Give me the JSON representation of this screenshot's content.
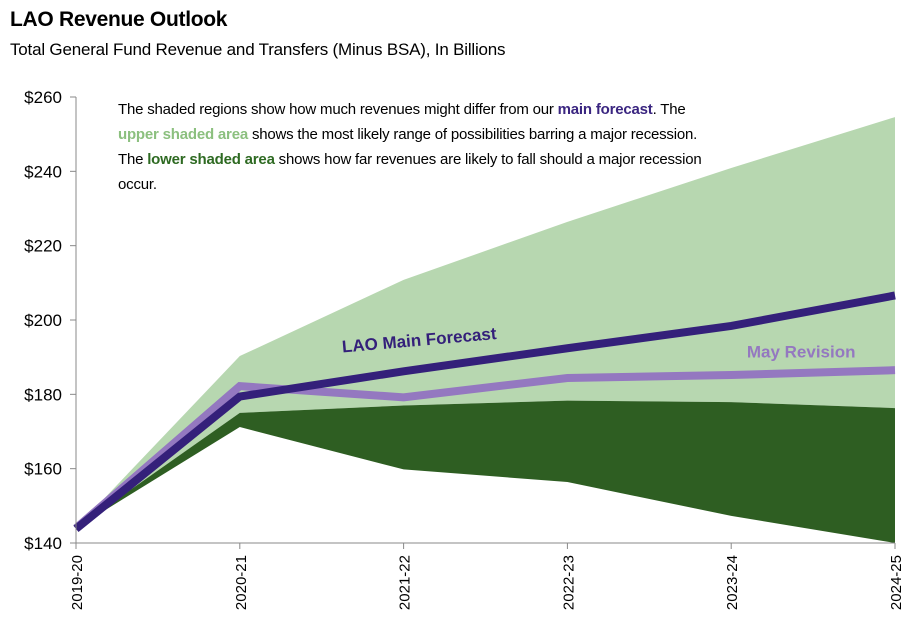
{
  "header": {
    "title": "LAO Revenue Outlook",
    "subtitle": "Total General Fund Revenue  and Transfers  (Minus BSA), In Billions"
  },
  "note": {
    "part1": "The shaded regions show how much revenues might differ from our ",
    "main_highlight": "main forecast",
    "part2": ". The ",
    "upper_highlight": "upper shaded area",
    "part3": " shows the most likely range of possibilities barring a major recession. The ",
    "lower_highlight": "lower shaded area",
    "part4": " shows how far revenues are likely to fall should a major recession occur."
  },
  "colors": {
    "upper_band": "#b7d7b0",
    "lower_band": "#2e5e22",
    "main_forecast": "#34207a",
    "may_revision": "#9478c0",
    "axis": "#888888"
  },
  "chart_data": {
    "type": "area",
    "title": "LAO Revenue Outlook",
    "subtitle": "Total General Fund Revenue and Transfers (Minus BSA), In Billions",
    "xlabel": "",
    "ylabel": "",
    "categories": [
      "2019-20",
      "2020-21",
      "2021-22",
      "2022-23",
      "2023-24",
      "2024-25"
    ],
    "ylim": [
      140,
      260
    ],
    "yticks": [
      140,
      160,
      180,
      200,
      220,
      240,
      260
    ],
    "ytick_labels": [
      "$140",
      "$160",
      "$180",
      "$200",
      "$220",
      "$240",
      "$260"
    ],
    "grid": false,
    "series": [
      {
        "name": "Upper shaded area (top)",
        "kind": "band-top",
        "values": [
          144,
          190.3,
          210.8,
          226.4,
          240.9,
          254.6
        ]
      },
      {
        "name": "Upper shaded area (bottom) / Lower shaded area (top)",
        "kind": "band-mid",
        "values": [
          144,
          175,
          177,
          178.3,
          177.9,
          176.3
        ]
      },
      {
        "name": "Lower shaded area (bottom)",
        "kind": "band-bottom",
        "values": [
          144,
          171.2,
          159.8,
          156.4,
          147.3,
          140
        ]
      },
      {
        "name": "May Revision",
        "kind": "line",
        "values": [
          144,
          182.2,
          179.2,
          184.4,
          185.2,
          186.5
        ]
      },
      {
        "name": "LAO Main Forecast",
        "kind": "line",
        "values": [
          143.8,
          179.4,
          186.2,
          192.4,
          198.4,
          206.6
        ]
      }
    ],
    "annotations": [
      {
        "text": "LAO Main Forecast",
        "series": "LAO Main Forecast"
      },
      {
        "text": "May Revision",
        "series": "May Revision"
      }
    ]
  }
}
